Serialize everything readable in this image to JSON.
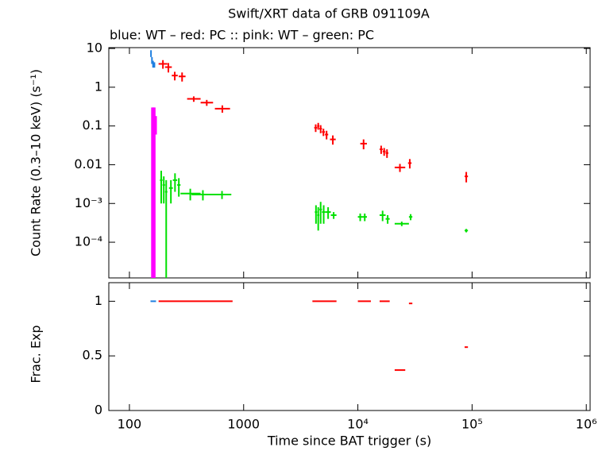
{
  "chart_data": [
    {
      "type": "errorbar",
      "title": "Swift/XRT data of GRB 091109A",
      "subtitle": "blue: WT  – red: PC  :: pink: WT  – green: PC",
      "ylabel": "Count Rate (0.3–10 keV) (s⁻¹)",
      "log_x": true,
      "log_y": true,
      "xlim": [
        66,
        1080000
      ],
      "ylim": [
        1.2e-05,
        10.5
      ],
      "yticks": [
        10,
        1,
        0.1,
        0.01,
        {
          "value": 0.001,
          "label": "10⁻³"
        },
        {
          "value": 0.0001,
          "label": "10⁻⁴"
        }
      ],
      "series": [
        {
          "color": "#1e7fe0",
          "x_lo": [
            153,
            156,
            159,
            163
          ],
          "x_hi": [
            156,
            159,
            163,
            168
          ],
          "values": [
            7.5,
            5,
            4,
            3.8
          ],
          "yerr": [
            1.5,
            1,
            0.8,
            0.6
          ]
        },
        {
          "color": "#ff0000",
          "x_lo": [
            180,
            205,
            235,
            270,
            320,
            420,
            560,
            4150,
            4400,
            4600,
            4850,
            5150,
            5700,
            10500,
            15500,
            16500,
            17500,
            21000,
            27500,
            86000
          ],
          "x_hi": [
            215,
            235,
            265,
            310,
            420,
            540,
            760,
            4400,
            4600,
            4850,
            5150,
            5500,
            6400,
            12000,
            16500,
            17500,
            18500,
            26000,
            29500,
            92000
          ],
          "values": [
            4,
            3.3,
            2,
            1.9,
            0.5,
            0.4,
            0.28,
            0.09,
            0.1,
            0.085,
            0.07,
            0.06,
            0.045,
            0.035,
            0.025,
            0.022,
            0.02,
            0.0085,
            0.011,
            0.005
          ],
          "yerr": [
            1,
            0.9,
            0.5,
            0.5,
            0.08,
            0.07,
            0.06,
            0.02,
            0.02,
            0.02,
            0.015,
            0.015,
            0.012,
            0.01,
            0.006,
            0.005,
            0.005,
            0.002,
            0.003,
            0.0015
          ]
        },
        {
          "color": "#ff00ff",
          "x_lo": [
            158,
            162,
            166
          ],
          "x_hi": [
            162,
            166,
            171
          ],
          "values": [
            0.1,
            0.15,
            0.12
          ],
          "yerr": [
            0.2,
            0.15,
            0.06
          ]
        },
        {
          "color": "#00e000",
          "x_lo": [
            185,
            195,
            205,
            222,
            240,
            262,
            280,
            350,
            540,
            4200,
            4400,
            4600,
            4850,
            5200,
            5800,
            10000,
            11000,
            15500,
            17500,
            21000,
            28000,
            86000
          ],
          "x_hi": [
            195,
            205,
            215,
            240,
            262,
            280,
            420,
            560,
            780,
            4400,
            4600,
            4850,
            5200,
            5800,
            6500,
            11000,
            12000,
            17500,
            19000,
            28000,
            30000,
            92000
          ],
          "values": [
            0.004,
            0.003,
            0.002,
            0.0025,
            0.004,
            0.003,
            0.0018,
            0.0017,
            0.0017,
            0.0006,
            0.0005,
            0.0007,
            0.0006,
            0.0006,
            0.0005,
            0.00045,
            0.00045,
            0.0005,
            0.0004,
            0.0003,
            0.00045,
            0.0002
          ],
          "yerr": [
            0.003,
            0.002,
            0.002,
            0.0015,
            0.002,
            0.0015,
            0.0006,
            0.0005,
            0.0004,
            0.0003,
            0.0003,
            0.0004,
            0.0003,
            0.0002,
            0.0001,
            0.0001,
            0.0001,
            0.00015,
            0.0001,
            4e-05,
            8e-05,
            2e-05
          ]
        }
      ]
    },
    {
      "type": "segment",
      "ylabel": "Frac. Exp",
      "xlabel": "Time since BAT trigger (s)",
      "log_x": true,
      "xlim": [
        66,
        1080000
      ],
      "ylim": [
        0,
        1.17
      ],
      "xticks": [
        100,
        1000,
        {
          "value": 10000,
          "label": "10⁴"
        },
        {
          "value": 100000,
          "label": "10⁵"
        },
        {
          "value": 1000000,
          "label": "10⁶"
        }
      ],
      "yticks": [
        0,
        0.5,
        1
      ],
      "series": [
        {
          "color": "#1e7fe0",
          "x_lo": [
            153
          ],
          "x_hi": [
            171
          ],
          "values": [
            1
          ]
        },
        {
          "color": "#ff0000",
          "x_lo": [
            180,
            4000,
            10000,
            15500,
            21000,
            28000,
            86000
          ],
          "x_hi": [
            800,
            6500,
            13000,
            19000,
            26000,
            30000,
            92000
          ],
          "values": [
            1,
            1,
            1,
            1,
            0.37,
            0.98,
            0.58
          ]
        }
      ]
    }
  ]
}
